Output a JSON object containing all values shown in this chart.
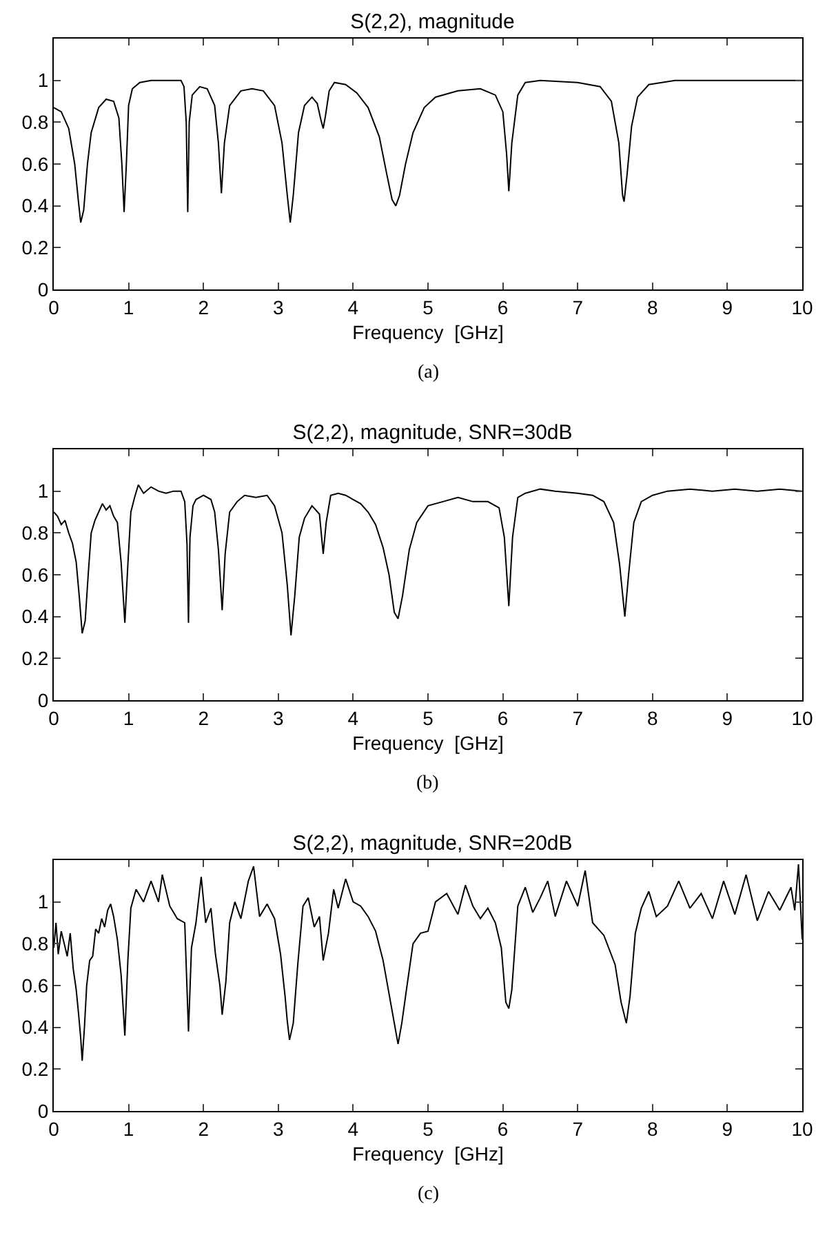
{
  "chart_data": [
    {
      "type": "line",
      "title": "S(2,2), magnitude",
      "xlabel": "Frequency  [GHz]",
      "annotations": [
        "(a)"
      ],
      "xlim": [
        0,
        10
      ],
      "ylim": [
        0,
        1.2
      ],
      "xticks": [
        0,
        1,
        2,
        3,
        4,
        5,
        6,
        7,
        8,
        9,
        10
      ],
      "yticks": [
        0,
        0.2,
        0.4,
        0.6,
        0.8,
        1
      ],
      "grid": false,
      "marker": "none",
      "line_style": "solid",
      "color": "#000000",
      "x": [
        0,
        0.1,
        0.2,
        0.28,
        0.33,
        0.36,
        0.4,
        0.45,
        0.5,
        0.6,
        0.7,
        0.8,
        0.87,
        0.91,
        0.94,
        0.97,
        1.0,
        1.05,
        1.15,
        1.3,
        1.7,
        1.74,
        1.77,
        1.79,
        1.81,
        1.85,
        1.95,
        2.05,
        2.15,
        2.2,
        2.24,
        2.28,
        2.35,
        2.5,
        2.65,
        2.8,
        2.95,
        3.05,
        3.12,
        3.16,
        3.2,
        3.27,
        3.35,
        3.45,
        3.52,
        3.57,
        3.6,
        3.63,
        3.68,
        3.75,
        3.9,
        4.05,
        4.2,
        4.35,
        4.45,
        4.52,
        4.57,
        4.62,
        4.7,
        4.8,
        4.95,
        5.1,
        5.4,
        5.7,
        5.9,
        6.0,
        6.05,
        6.08,
        6.12,
        6.2,
        6.3,
        6.5,
        7.0,
        7.3,
        7.45,
        7.55,
        7.6,
        7.62,
        7.66,
        7.72,
        7.8,
        7.95,
        8.3,
        10
      ],
      "values": [
        0.87,
        0.85,
        0.77,
        0.6,
        0.42,
        0.32,
        0.38,
        0.6,
        0.75,
        0.87,
        0.91,
        0.9,
        0.82,
        0.6,
        0.37,
        0.6,
        0.88,
        0.96,
        0.99,
        1.0,
        1.0,
        0.97,
        0.8,
        0.37,
        0.8,
        0.93,
        0.97,
        0.96,
        0.88,
        0.7,
        0.46,
        0.7,
        0.88,
        0.95,
        0.96,
        0.95,
        0.88,
        0.7,
        0.45,
        0.32,
        0.45,
        0.75,
        0.88,
        0.92,
        0.89,
        0.81,
        0.77,
        0.83,
        0.95,
        0.99,
        0.98,
        0.94,
        0.87,
        0.73,
        0.55,
        0.43,
        0.4,
        0.45,
        0.6,
        0.75,
        0.87,
        0.92,
        0.95,
        0.96,
        0.93,
        0.85,
        0.65,
        0.47,
        0.7,
        0.93,
        0.99,
        1.0,
        0.99,
        0.97,
        0.9,
        0.7,
        0.45,
        0.42,
        0.55,
        0.78,
        0.92,
        0.98,
        1.0,
        1.0
      ]
    },
    {
      "type": "line",
      "title": "S(2,2), magnitude, SNR=30dB",
      "xlabel": "Frequency  [GHz]",
      "annotations": [
        "(b)"
      ],
      "xlim": [
        0,
        10
      ],
      "ylim": [
        0,
        1.2
      ],
      "xticks": [
        0,
        1,
        2,
        3,
        4,
        5,
        6,
        7,
        8,
        9,
        10
      ],
      "yticks": [
        0,
        0.2,
        0.4,
        0.6,
        0.8,
        1
      ],
      "grid": false,
      "marker": "none",
      "line_style": "solid",
      "color": "#000000",
      "x": [
        0,
        0.05,
        0.1,
        0.15,
        0.2,
        0.25,
        0.3,
        0.34,
        0.38,
        0.42,
        0.46,
        0.5,
        0.55,
        0.6,
        0.65,
        0.7,
        0.75,
        0.8,
        0.85,
        0.9,
        0.95,
        0.99,
        1.03,
        1.08,
        1.13,
        1.2,
        1.3,
        1.4,
        1.5,
        1.6,
        1.7,
        1.75,
        1.78,
        1.8,
        1.82,
        1.86,
        1.9,
        2.0,
        2.1,
        2.15,
        2.2,
        2.25,
        2.29,
        2.35,
        2.45,
        2.55,
        2.7,
        2.85,
        2.95,
        3.05,
        3.12,
        3.17,
        3.22,
        3.28,
        3.35,
        3.45,
        3.55,
        3.6,
        3.64,
        3.7,
        3.8,
        3.9,
        4.0,
        4.1,
        4.2,
        4.3,
        4.4,
        4.48,
        4.55,
        4.6,
        4.66,
        4.75,
        4.85,
        5.0,
        5.2,
        5.4,
        5.6,
        5.8,
        5.95,
        6.02,
        6.08,
        6.13,
        6.2,
        6.3,
        6.5,
        6.7,
        7.0,
        7.2,
        7.35,
        7.48,
        7.56,
        7.63,
        7.68,
        7.75,
        7.85,
        8.0,
        8.2,
        8.5,
        8.8,
        9.1,
        9.4,
        9.7,
        10
      ],
      "values": [
        0.9,
        0.88,
        0.84,
        0.86,
        0.8,
        0.75,
        0.66,
        0.5,
        0.32,
        0.38,
        0.6,
        0.8,
        0.86,
        0.9,
        0.94,
        0.91,
        0.93,
        0.88,
        0.85,
        0.66,
        0.37,
        0.65,
        0.9,
        0.97,
        1.03,
        0.99,
        1.02,
        1.0,
        0.99,
        1.0,
        1.0,
        0.95,
        0.75,
        0.37,
        0.78,
        0.93,
        0.96,
        0.98,
        0.96,
        0.9,
        0.72,
        0.43,
        0.7,
        0.9,
        0.95,
        0.98,
        0.97,
        0.98,
        0.93,
        0.8,
        0.55,
        0.31,
        0.5,
        0.78,
        0.87,
        0.93,
        0.89,
        0.7,
        0.85,
        0.98,
        0.99,
        0.98,
        0.96,
        0.94,
        0.9,
        0.84,
        0.73,
        0.6,
        0.42,
        0.39,
        0.5,
        0.72,
        0.85,
        0.93,
        0.95,
        0.97,
        0.95,
        0.95,
        0.92,
        0.78,
        0.45,
        0.78,
        0.97,
        0.99,
        1.01,
        1.0,
        0.99,
        0.98,
        0.95,
        0.85,
        0.65,
        0.4,
        0.6,
        0.85,
        0.95,
        0.98,
        1.0,
        1.01,
        1.0,
        1.01,
        1.0,
        1.01,
        1.0
      ]
    },
    {
      "type": "line",
      "title": "S(2,2), magnitude, SNR=20dB",
      "xlabel": "Frequency  [GHz]",
      "annotations": [
        "(c)"
      ],
      "xlim": [
        0,
        10
      ],
      "ylim": [
        0,
        1.2
      ],
      "xticks": [
        0,
        1,
        2,
        3,
        4,
        5,
        6,
        7,
        8,
        9,
        10
      ],
      "yticks": [
        0,
        0.2,
        0.4,
        0.6,
        0.8,
        1
      ],
      "grid": false,
      "marker": "none",
      "line_style": "solid",
      "color": "#000000",
      "x": [
        0,
        0.03,
        0.06,
        0.1,
        0.14,
        0.18,
        0.22,
        0.26,
        0.3,
        0.33,
        0.36,
        0.38,
        0.41,
        0.44,
        0.48,
        0.52,
        0.56,
        0.6,
        0.64,
        0.68,
        0.72,
        0.76,
        0.8,
        0.85,
        0.9,
        0.95,
        0.99,
        1.03,
        1.1,
        1.2,
        1.3,
        1.4,
        1.45,
        1.55,
        1.65,
        1.75,
        1.8,
        1.84,
        1.9,
        1.97,
        2.03,
        2.1,
        2.16,
        2.22,
        2.25,
        2.3,
        2.35,
        2.42,
        2.5,
        2.6,
        2.67,
        2.75,
        2.85,
        2.95,
        3.03,
        3.09,
        3.12,
        3.15,
        3.2,
        3.26,
        3.33,
        3.4,
        3.48,
        3.55,
        3.6,
        3.67,
        3.74,
        3.8,
        3.9,
        4.0,
        4.1,
        4.2,
        4.3,
        4.4,
        4.47,
        4.53,
        4.6,
        4.65,
        4.72,
        4.8,
        4.9,
        5.0,
        5.1,
        5.25,
        5.4,
        5.5,
        5.6,
        5.7,
        5.8,
        5.9,
        5.98,
        6.04,
        6.08,
        6.12,
        6.2,
        6.3,
        6.4,
        6.5,
        6.6,
        6.7,
        6.85,
        7.0,
        7.1,
        7.2,
        7.35,
        7.5,
        7.58,
        7.65,
        7.7,
        7.77,
        7.85,
        7.95,
        8.05,
        8.2,
        8.35,
        8.5,
        8.65,
        8.8,
        8.95,
        9.1,
        9.25,
        9.4,
        9.55,
        9.7,
        9.85,
        9.9,
        9.95,
        10
      ],
      "values": [
        0.78,
        0.9,
        0.75,
        0.86,
        0.8,
        0.74,
        0.85,
        0.68,
        0.58,
        0.47,
        0.35,
        0.24,
        0.4,
        0.6,
        0.72,
        0.74,
        0.87,
        0.85,
        0.92,
        0.88,
        0.96,
        0.99,
        0.93,
        0.82,
        0.65,
        0.36,
        0.72,
        0.97,
        1.06,
        1.0,
        1.1,
        1.0,
        1.13,
        0.98,
        0.92,
        0.9,
        0.38,
        0.78,
        0.9,
        1.12,
        0.9,
        0.97,
        0.75,
        0.6,
        0.46,
        0.62,
        0.9,
        1.0,
        0.92,
        1.1,
        1.17,
        0.93,
        0.99,
        0.92,
        0.75,
        0.55,
        0.43,
        0.34,
        0.42,
        0.7,
        0.98,
        1.02,
        0.88,
        0.93,
        0.72,
        0.85,
        1.06,
        0.97,
        1.11,
        1.0,
        0.98,
        0.93,
        0.86,
        0.72,
        0.58,
        0.46,
        0.32,
        0.42,
        0.6,
        0.8,
        0.85,
        0.86,
        1.0,
        1.04,
        0.94,
        1.08,
        0.98,
        0.92,
        0.97,
        0.9,
        0.78,
        0.52,
        0.49,
        0.58,
        0.98,
        1.07,
        0.95,
        1.02,
        1.1,
        0.93,
        1.1,
        0.98,
        1.15,
        0.9,
        0.84,
        0.7,
        0.52,
        0.42,
        0.55,
        0.85,
        0.97,
        1.05,
        0.93,
        0.98,
        1.1,
        0.97,
        1.04,
        0.92,
        1.1,
        0.94,
        1.13,
        0.91,
        1.05,
        0.96,
        1.07,
        0.96,
        1.18,
        0.82
      ]
    }
  ]
}
